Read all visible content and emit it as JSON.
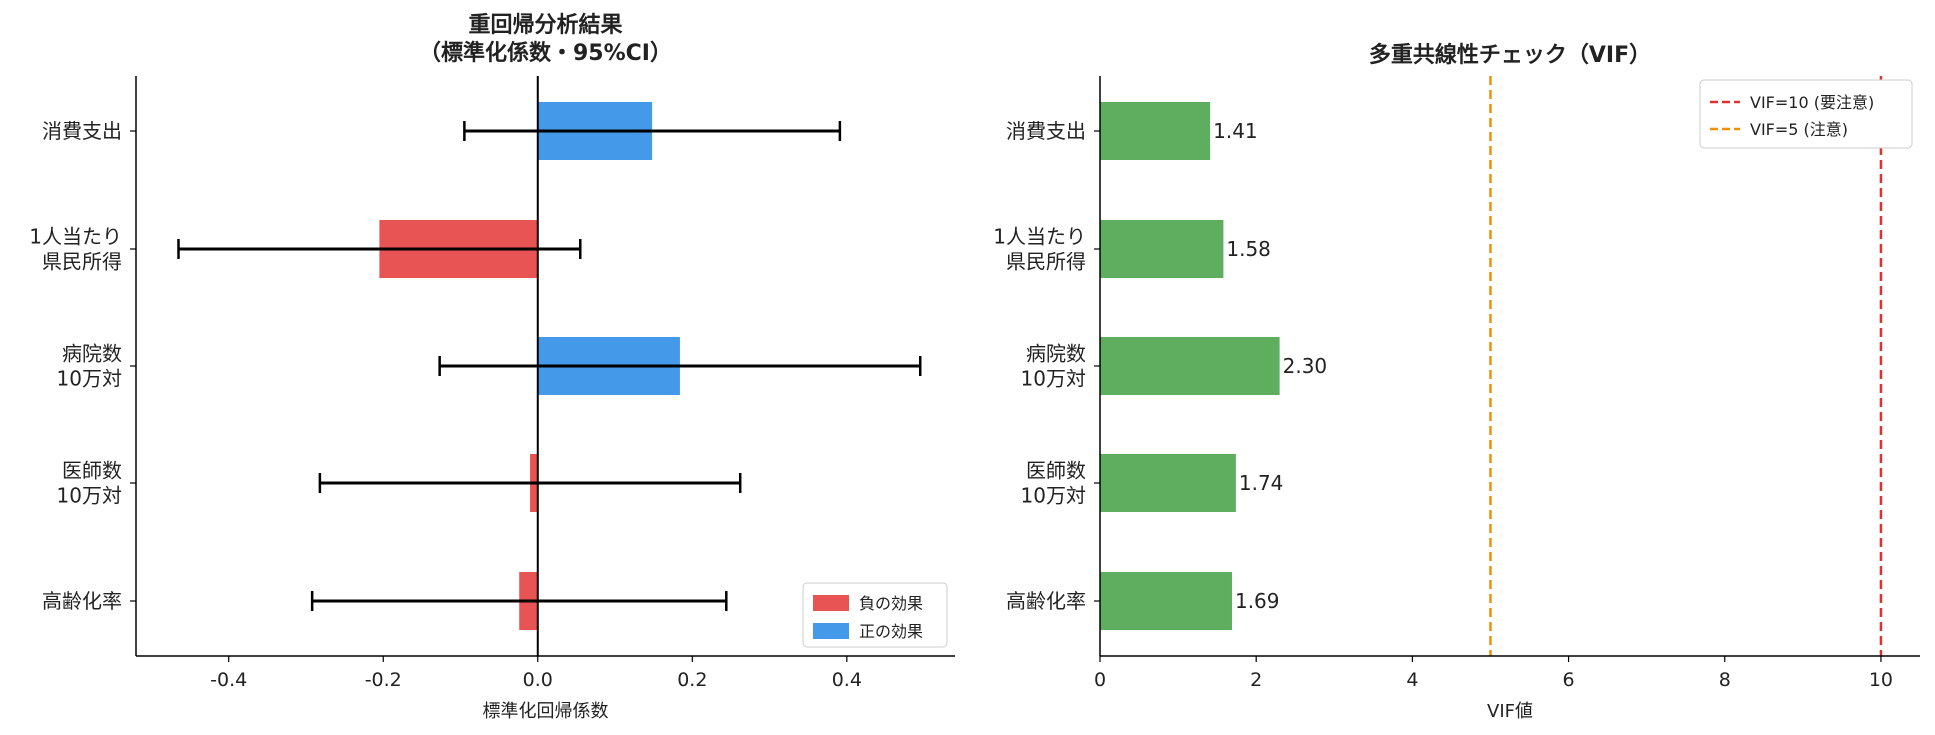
{
  "chart_data": [
    {
      "type": "bar",
      "orientation": "horizontal",
      "title": [
        "重回帰分析結果",
        "（標準化係数・95%CI）"
      ],
      "xlabel": "標準化回帰係数",
      "ylabel": "",
      "xlim": [
        -0.52,
        0.54
      ],
      "xticks": [
        -0.4,
        -0.2,
        0.0,
        0.2,
        0.4
      ],
      "xtick_labels": [
        "-0.4",
        "-0.2",
        "0.0",
        "0.2",
        "0.4"
      ],
      "categories": [
        [
          "消費支出"
        ],
        [
          "1人当たり",
          "県民所得"
        ],
        [
          "病院数",
          "10万対"
        ],
        [
          "医師数",
          "10万対"
        ],
        [
          "高齢化率"
        ]
      ],
      "values": [
        0.148,
        -0.205,
        0.184,
        -0.01,
        -0.024
      ],
      "ci_lower": [
        -0.095,
        -0.465,
        -0.127,
        -0.282,
        -0.292
      ],
      "ci_upper": [
        0.391,
        0.055,
        0.495,
        0.262,
        0.244
      ],
      "colors": {
        "negative": "#e85454",
        "positive": "#4499e8",
        "errorbar": "#000000"
      },
      "legend": {
        "position": "lower-right",
        "items": [
          {
            "label": "負の効果",
            "color": "#e85454"
          },
          {
            "label": "正の効果",
            "color": "#4499e8"
          }
        ]
      },
      "grid": false
    },
    {
      "type": "bar",
      "orientation": "horizontal",
      "title": [
        "多重共線性チェック（VIF）"
      ],
      "xlabel": "VIF値",
      "ylabel": "",
      "xlim": [
        0,
        10.5
      ],
      "xticks": [
        0,
        2,
        4,
        6,
        8,
        10
      ],
      "xtick_labels": [
        "0",
        "2",
        "4",
        "6",
        "8",
        "10"
      ],
      "categories": [
        [
          "消費支出"
        ],
        [
          "1人当たり",
          "県民所得"
        ],
        [
          "病院数",
          "10万対"
        ],
        [
          "医師数",
          "10万対"
        ],
        [
          "高齢化率"
        ]
      ],
      "values": [
        1.41,
        1.58,
        2.3,
        1.74,
        1.69
      ],
      "value_labels": [
        "1.41",
        "1.58",
        "2.30",
        "1.74",
        "1.69"
      ],
      "bar_color": "#5fae5f",
      "reference_lines": [
        {
          "x": 10,
          "label": "VIF=10 (要注意)",
          "color": "#e03030"
        },
        {
          "x": 5,
          "label": "VIF=5 (注意)",
          "color": "#f0900a"
        }
      ],
      "legend": {
        "position": "upper-right"
      },
      "grid": false
    }
  ]
}
